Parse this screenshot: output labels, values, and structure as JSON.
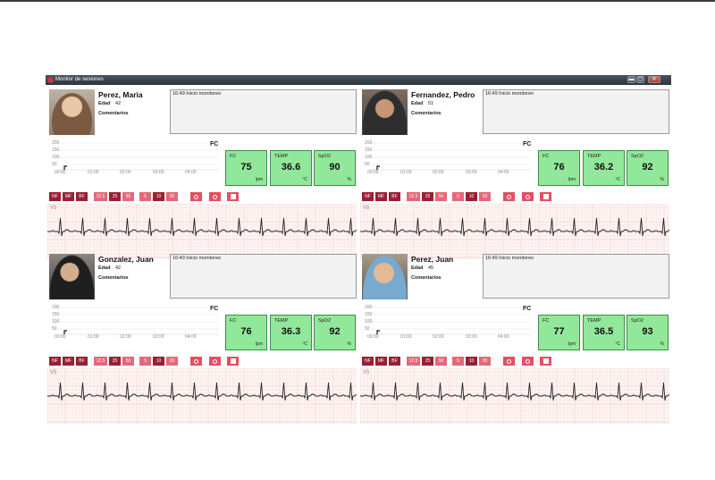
{
  "window": {
    "title": "Monitor de sesiones",
    "min_label": "▬",
    "max_label": "▢",
    "close_label": "✕"
  },
  "labels": {
    "age": "Edad",
    "comments": "Comentarios",
    "hr_chart": "FC",
    "hr": "FC",
    "temp": "TEMP",
    "spo2": "SpO2",
    "hr_unit": "lpm",
    "temp_unit": "ºC",
    "spo2_unit": "%",
    "lead": "V5",
    "y_ticks": [
      "200",
      "150",
      "100",
      "50"
    ],
    "x_ticks": [
      "00:00",
      "01:00",
      "02:00",
      "03:00",
      "04:00"
    ]
  },
  "controls": [
    "NF",
    "MF",
    "BF",
    "12.5",
    "25",
    "50",
    "5",
    "10",
    "20"
  ],
  "patients": [
    {
      "name": "Perez, Maria",
      "age": "42",
      "log": "16:49 Inicio monitoreo",
      "hr": "75",
      "temp": "36.6",
      "spo2": "90"
    },
    {
      "name": "Fernandez, Pedro",
      "age": "51",
      "log": "16:49 Inicio monitoreo",
      "hr": "76",
      "temp": "36.2",
      "spo2": "92"
    },
    {
      "name": "Gonzalez, Juan",
      "age": "42",
      "log": "16:49 Inicio monitoreo",
      "hr": "76",
      "temp": "36.3",
      "spo2": "92"
    },
    {
      "name": "Perez, Juan",
      "age": "45",
      "log": "16:49 Inicio monitoreo",
      "hr": "77",
      "temp": "36.5",
      "spo2": "93"
    }
  ],
  "colors": {
    "vital_bg": "#92e89a",
    "control_dark": "#9a1f33",
    "control_light": "#e56878",
    "ecg_grid": "#f2c9c9"
  }
}
